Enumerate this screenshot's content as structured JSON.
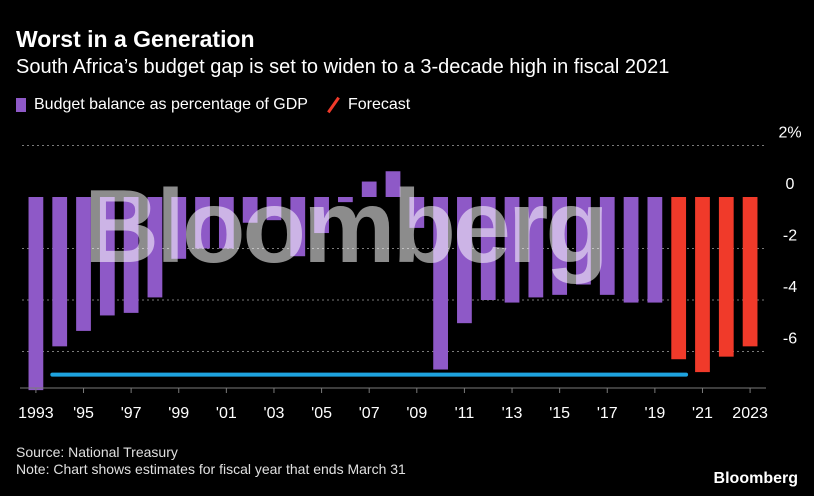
{
  "header": {
    "title": "Worst in a Generation",
    "subtitle": "South Africa’s budget gap is set to widen to a 3-decade high in fiscal 2021"
  },
  "legend": {
    "budget_label": "Budget balance as percentage of GDP",
    "forecast_label": "Forecast"
  },
  "footer": {
    "source": "Source: National Treasury",
    "note": "Note: Chart shows estimates for fiscal year that ends March 31",
    "brand": "Bloomberg"
  },
  "watermark": "Bloomberg",
  "colors": {
    "background": "#000000",
    "actual": "#8e59c7",
    "forecast": "#f03a2a",
    "reference_line": "#1ea3df",
    "grid": "#7a7a7a",
    "text": "#ffffff"
  },
  "chart_data": {
    "type": "bar",
    "title": "Worst in a Generation",
    "ylabel": "Budget balance as percentage of GDP",
    "ylim": [
      -7.6,
      2.4
    ],
    "y_ticks": [
      {
        "value": 2,
        "label": "2%"
      },
      {
        "value": 0,
        "label": "0"
      },
      {
        "value": -2,
        "label": "-2"
      },
      {
        "value": -4,
        "label": "-4"
      },
      {
        "value": -6,
        "label": "-6"
      }
    ],
    "categories": [
      "1993",
      "1994",
      "1995",
      "1996",
      "1997",
      "1998",
      "1999",
      "2000",
      "2001",
      "2002",
      "2003",
      "2004",
      "2005",
      "2006",
      "2007",
      "2008",
      "2009",
      "2010",
      "2011",
      "2012",
      "2013",
      "2014",
      "2015",
      "2016",
      "2017",
      "2018",
      "2019",
      "2020",
      "2021",
      "2022",
      "2023"
    ],
    "x_tick_labels": [
      {
        "category": "1993",
        "label": "1993"
      },
      {
        "category": "1995",
        "label": "'95"
      },
      {
        "category": "1997",
        "label": "'97"
      },
      {
        "category": "1999",
        "label": "'99"
      },
      {
        "category": "2001",
        "label": "'01"
      },
      {
        "category": "2003",
        "label": "'03"
      },
      {
        "category": "2005",
        "label": "'05"
      },
      {
        "category": "2007",
        "label": "'07"
      },
      {
        "category": "2009",
        "label": "'09"
      },
      {
        "category": "2011",
        "label": "'11"
      },
      {
        "category": "2013",
        "label": "'13"
      },
      {
        "category": "2015",
        "label": "'15"
      },
      {
        "category": "2017",
        "label": "'17"
      },
      {
        "category": "2019",
        "label": "'19"
      },
      {
        "category": "2021",
        "label": "'21"
      },
      {
        "category": "2023",
        "label": "2023"
      }
    ],
    "values": [
      -7.5,
      -5.8,
      -5.2,
      -4.6,
      -4.5,
      -3.9,
      -2.4,
      -2.0,
      -2.0,
      -1.0,
      -0.9,
      -2.3,
      -1.4,
      -0.2,
      0.6,
      1.0,
      -1.2,
      -6.7,
      -4.9,
      -4.0,
      -4.1,
      -3.9,
      -3.8,
      -3.4,
      -3.8,
      -4.1,
      -4.1,
      -6.3,
      -6.8,
      -6.2,
      -5.8
    ],
    "forecast_start_index": 27,
    "series": [
      {
        "name": "Budget balance as percentage of GDP",
        "color": "#8e59c7"
      },
      {
        "name": "Forecast",
        "color": "#f03a2a"
      }
    ],
    "reference_line": {
      "value": -6.9,
      "from_category": "1994",
      "to_category": "2020"
    },
    "grid": true,
    "legend_position": "top-left"
  }
}
